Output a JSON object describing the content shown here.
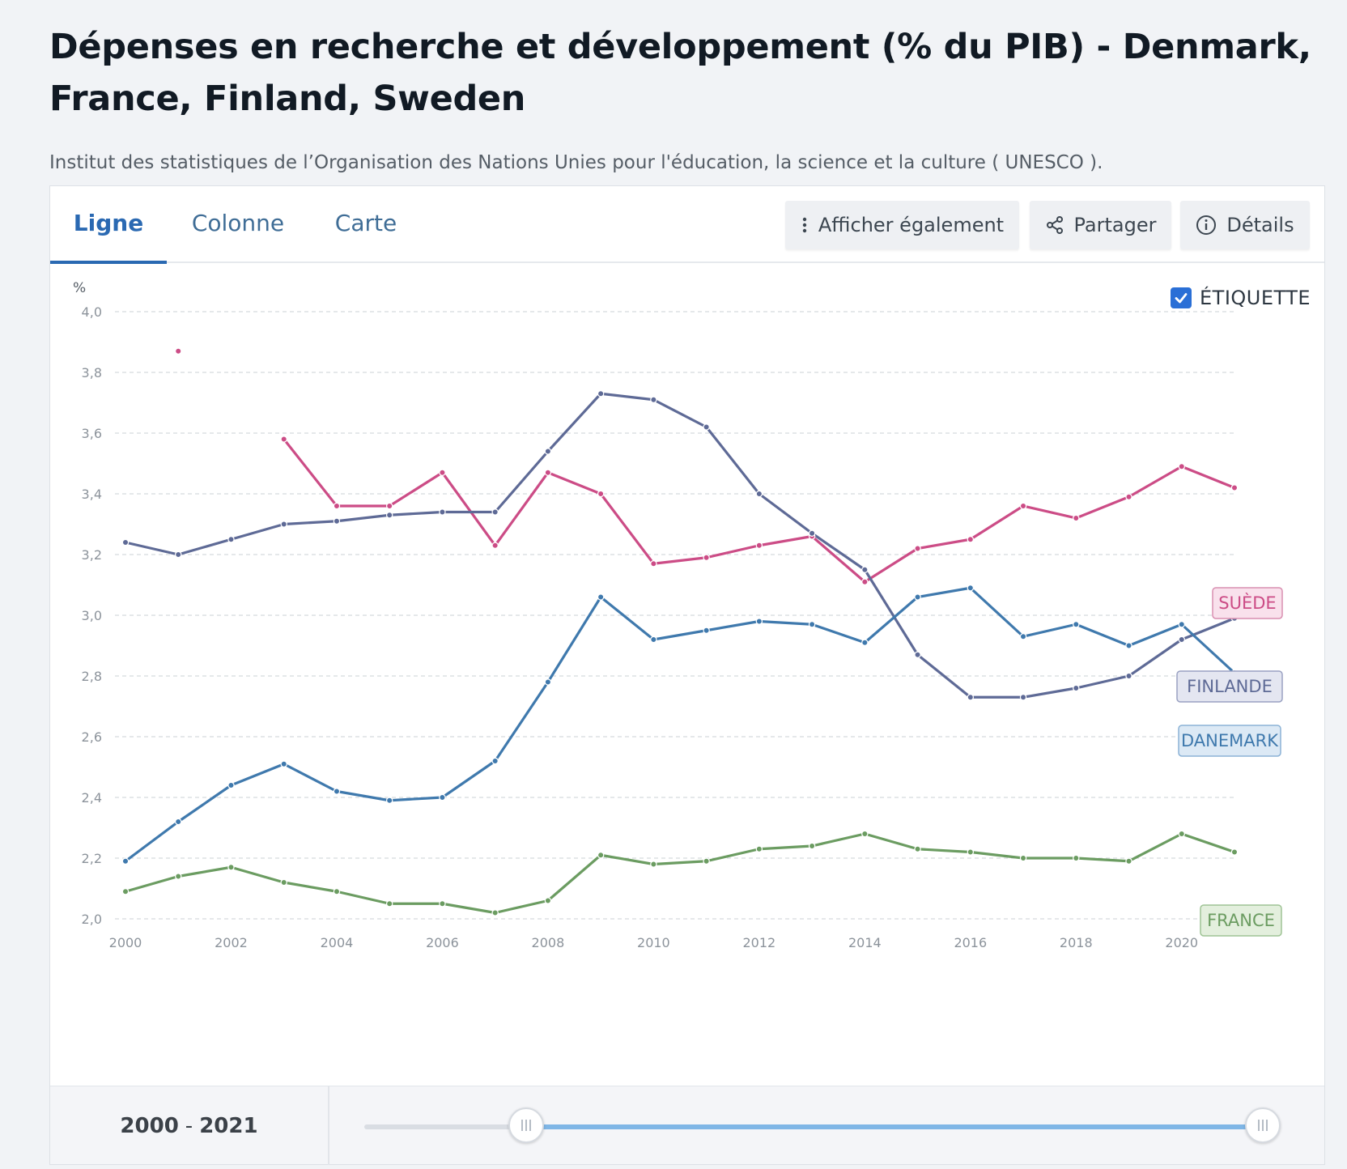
{
  "page": {
    "title": "Dépenses en recherche et développement (% du PIB) - Denmark, France, Finland, Sweden",
    "source": "Institut des statistiques de l’Organisation des Nations Unies pour l'éducation, la science et la culture ( UNESCO )."
  },
  "tabs": [
    {
      "label": "Ligne",
      "active": true
    },
    {
      "label": "Colonne",
      "active": false
    },
    {
      "label": "Carte",
      "active": false
    }
  ],
  "toolbar": {
    "show_also": {
      "label": "Afficher également",
      "icon": "kebab-vertical-icon"
    },
    "share": {
      "label": "Partager",
      "icon": "share-icon"
    },
    "details": {
      "label": "Détails",
      "icon": "info-circle-icon"
    }
  },
  "label_toggle": {
    "label": "ÉTIQUETTE",
    "checked": true
  },
  "range": {
    "start": "2000",
    "separator": "-",
    "end": "2021",
    "selected_start_fraction": 0.18,
    "selected_end_fraction": 1.0
  },
  "colors": {
    "sweden": "#cc4c86",
    "finland": "#5e6a96",
    "denmark": "#3f79ad",
    "france": "#6b9c61",
    "accent": "#2a69b2"
  },
  "chart_data": {
    "type": "line",
    "ylabel": "%",
    "ylim": [
      2.0,
      4.0
    ],
    "yticks": [
      "4,0",
      "3,8",
      "3,6",
      "3,4",
      "3,2",
      "3,0",
      "2,8",
      "2,6",
      "2,4",
      "2,2",
      "2,0"
    ],
    "ytick_values": [
      4.0,
      3.8,
      3.6,
      3.4,
      3.2,
      3.0,
      2.8,
      2.6,
      2.4,
      2.2,
      2.0
    ],
    "xticks": [
      "2000",
      "2002",
      "2004",
      "2006",
      "2008",
      "2010",
      "2012",
      "2014",
      "2016",
      "2018",
      "2020"
    ],
    "xtick_values": [
      2000,
      2002,
      2004,
      2006,
      2008,
      2010,
      2012,
      2014,
      2016,
      2018,
      2020
    ],
    "xlim": [
      2000,
      2021
    ],
    "grid": true,
    "x": [
      2000,
      2001,
      2002,
      2003,
      2004,
      2005,
      2006,
      2007,
      2008,
      2009,
      2010,
      2011,
      2012,
      2013,
      2014,
      2015,
      2016,
      2017,
      2018,
      2019,
      2020,
      2021
    ],
    "series": [
      {
        "key": "sweden",
        "name": "SUÈDE",
        "values": [
          null,
          3.87,
          null,
          3.58,
          3.36,
          3.36,
          3.47,
          3.23,
          3.47,
          3.4,
          3.17,
          3.19,
          3.23,
          3.26,
          3.11,
          3.22,
          3.25,
          3.36,
          3.32,
          3.39,
          3.49,
          3.42
        ]
      },
      {
        "key": "finland",
        "name": "FINLANDE",
        "values": [
          3.24,
          3.2,
          3.25,
          3.3,
          3.31,
          3.33,
          3.34,
          3.34,
          3.54,
          3.73,
          3.71,
          3.62,
          3.4,
          3.27,
          3.15,
          2.87,
          2.73,
          2.73,
          2.76,
          2.8,
          2.92,
          2.99
        ]
      },
      {
        "key": "denmark",
        "name": "DANEMARK",
        "values": [
          2.19,
          2.32,
          2.44,
          2.51,
          2.42,
          2.39,
          2.4,
          2.52,
          2.78,
          3.06,
          2.92,
          2.95,
          2.98,
          2.97,
          2.91,
          3.06,
          3.09,
          2.93,
          2.97,
          2.9,
          2.97,
          2.81
        ]
      },
      {
        "key": "france",
        "name": "FRANCE",
        "values": [
          2.09,
          2.14,
          2.17,
          2.12,
          2.09,
          2.05,
          2.05,
          2.02,
          2.06,
          2.21,
          2.18,
          2.19,
          2.23,
          2.24,
          2.28,
          2.23,
          2.22,
          2.2,
          2.2,
          2.19,
          2.28,
          2.22
        ]
      }
    ]
  }
}
